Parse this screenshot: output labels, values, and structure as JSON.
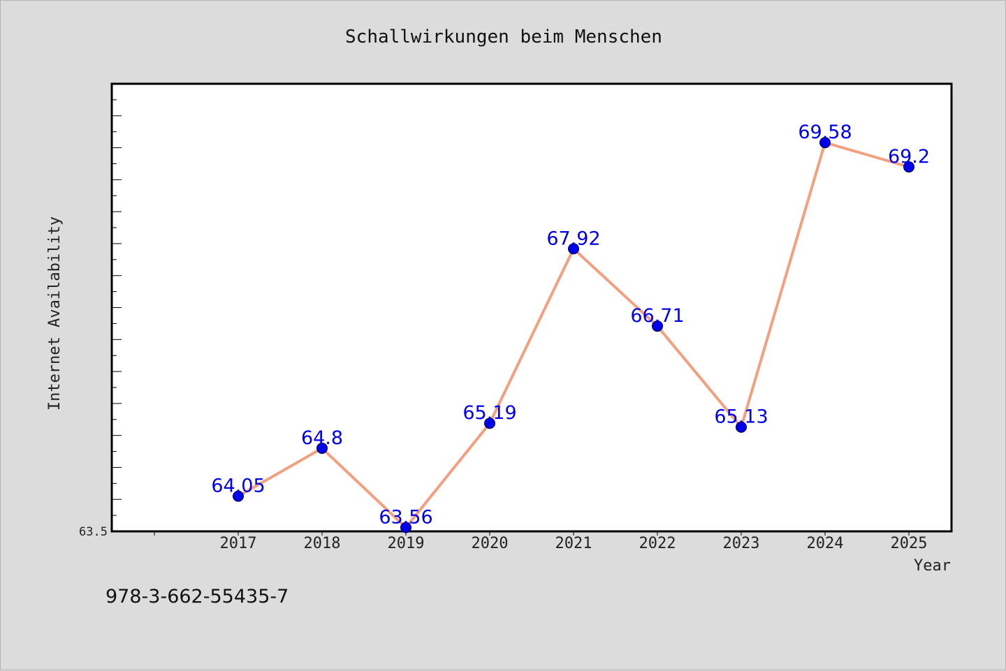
{
  "chart_data": {
    "type": "line",
    "title": "Schallwirkungen beim Menschen",
    "xlabel": "Year",
    "ylabel": "Internet Availability",
    "categories": [
      "2017",
      "2018",
      "2019",
      "2020",
      "2021",
      "2022",
      "2023",
      "2024",
      "2025"
    ],
    "series": [
      {
        "values": [
          64.05,
          64.8,
          63.56,
          65.19,
          67.92,
          66.71,
          65.13,
          69.58,
          69.2
        ]
      }
    ],
    "data_labels": [
      "64.05",
      "64.8",
      "63.56",
      "65.19",
      "67.92",
      "66.71",
      "65.13",
      "69.58",
      "69.2"
    ],
    "ylim": [
      63.5,
      70.5
    ],
    "y_tick_labels": [
      "63.5"
    ],
    "grid": false,
    "legend": "none",
    "colors": {
      "line": "#f4a07e",
      "marker": "#0000ee",
      "label": "#0000ee",
      "background": "#dcdcdc",
      "plot_background": "#ffffff"
    }
  },
  "footer": {
    "text": "978-3-662-55435-7"
  }
}
